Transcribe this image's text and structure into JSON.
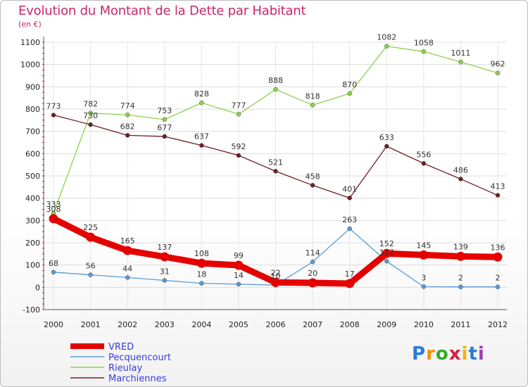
{
  "chart_data": {
    "type": "line",
    "title": "Evolution du Montant de la Dette par Habitant",
    "subtitle": "(en €)",
    "x": [
      "2000",
      "2001",
      "2002",
      "2003",
      "2004",
      "2005",
      "2006",
      "2007",
      "2008",
      "2009",
      "2010",
      "2011",
      "2012"
    ],
    "ylim": [
      -100,
      1100
    ],
    "yticks": [
      -100,
      0,
      100,
      200,
      300,
      400,
      500,
      600,
      700,
      800,
      900,
      1000,
      1100
    ],
    "grid": true,
    "legend_position": "bottom-left",
    "series": [
      {
        "name": "VRED",
        "color": "#e50000",
        "values": [
          308,
          225,
          165,
          137,
          108,
          99,
          22,
          20,
          17,
          152,
          145,
          139,
          136
        ]
      },
      {
        "name": "Pecquencourt",
        "color": "#5b9bd5",
        "values": [
          68,
          56,
          44,
          31,
          18,
          14,
          10,
          114,
          263,
          117,
          3,
          2,
          2
        ]
      },
      {
        "name": "Rieulay",
        "color": "#8fd14f",
        "values": [
          333,
          782,
          774,
          753,
          828,
          777,
          888,
          818,
          870,
          1082,
          1058,
          1011,
          962
        ]
      },
      {
        "name": "Marchiennes",
        "color": "#6e1f24",
        "values": [
          773,
          730,
          682,
          677,
          637,
          592,
          521,
          458,
          401,
          633,
          556,
          486,
          413
        ]
      }
    ]
  },
  "logo": {
    "letters": [
      "P",
      "r",
      "o",
      "x",
      "i",
      "t",
      "i"
    ],
    "colors": [
      "#2a7bd8",
      "#f29200",
      "#35a82f",
      "#d81f3d",
      "#f2b400",
      "#2a7bd8",
      "#9b3fb5"
    ]
  }
}
